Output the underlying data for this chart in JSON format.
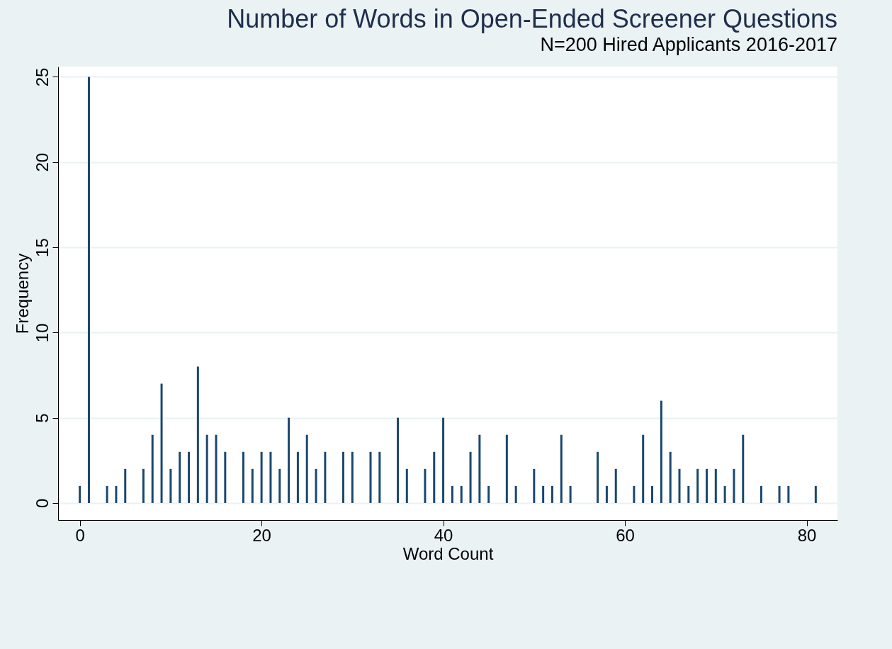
{
  "chart_data": {
    "type": "bar",
    "title": "Number of Words in Open-Ended Screener Questions",
    "subtitle": "N=200 Hired Applicants 2016-2017",
    "xlabel": "Word Count",
    "ylabel": "Frequency",
    "color": "#1a476f",
    "x": [
      0,
      1,
      3,
      4,
      5,
      7,
      8,
      9,
      10,
      11,
      12,
      13,
      14,
      15,
      16,
      18,
      19,
      20,
      21,
      22,
      23,
      24,
      25,
      26,
      27,
      29,
      30,
      32,
      33,
      35,
      36,
      38,
      39,
      40,
      41,
      42,
      43,
      44,
      45,
      47,
      48,
      50,
      51,
      52,
      53,
      54,
      57,
      58,
      59,
      61,
      62,
      63,
      64,
      65,
      66,
      67,
      68,
      69,
      70,
      71,
      72,
      73,
      75,
      77,
      78,
      81
    ],
    "values": [
      1,
      25,
      1,
      1,
      2,
      2,
      4,
      7,
      2,
      3,
      3,
      8,
      4,
      4,
      3,
      3,
      2,
      3,
      3,
      2,
      5,
      3,
      4,
      2,
      3,
      3,
      3,
      3,
      3,
      5,
      2,
      2,
      3,
      5,
      1,
      1,
      3,
      4,
      1,
      4,
      1,
      2,
      1,
      1,
      4,
      1,
      3,
      1,
      2,
      1,
      4,
      1,
      6,
      3,
      2,
      1,
      2,
      2,
      2,
      1,
      2,
      4,
      1,
      1,
      1,
      1
    ],
    "xlim": [
      -2,
      83
    ],
    "ylim": [
      -1,
      25.6
    ],
    "xticks": [
      0,
      20,
      40,
      60,
      80
    ],
    "yticks": [
      0,
      5,
      10,
      15,
      20,
      25
    ],
    "grid": "y"
  }
}
